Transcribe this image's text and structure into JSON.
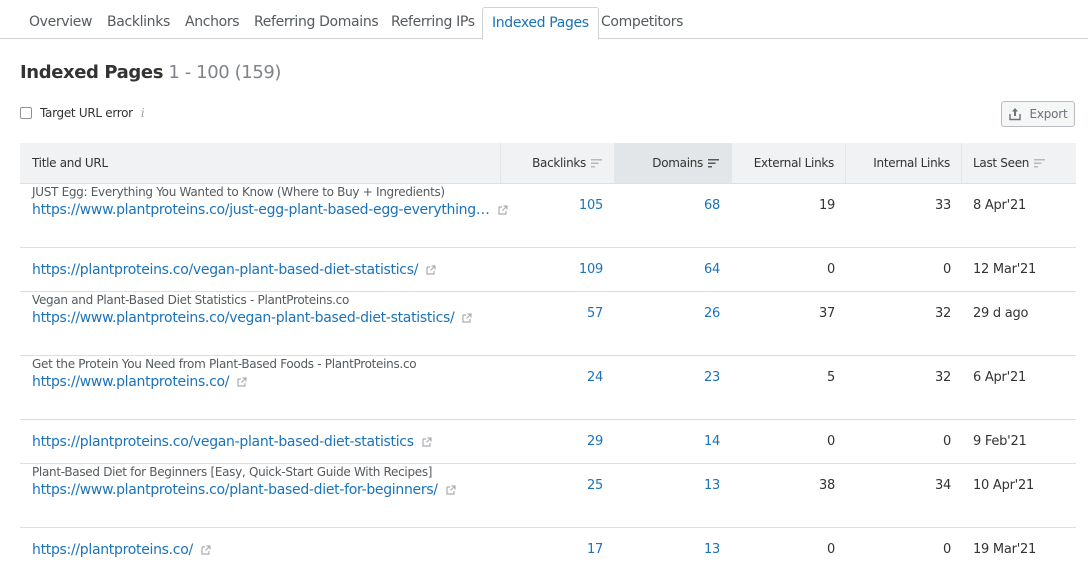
{
  "tabs": [
    {
      "label": "Overview",
      "active": false
    },
    {
      "label": "Backlinks",
      "active": false
    },
    {
      "label": "Anchors",
      "active": false
    },
    {
      "label": "Referring Domains",
      "active": false
    },
    {
      "label": "Referring IPs",
      "active": false
    },
    {
      "label": "Indexed Pages",
      "active": true
    },
    {
      "label": "Competitors",
      "active": false
    }
  ],
  "header": {
    "title": "Indexed Pages",
    "range": "1 - 100 (159)"
  },
  "filter": {
    "label": "Target URL error",
    "checked": false,
    "info_icon": "i"
  },
  "export": {
    "label": "Export",
    "icon": "upload-icon"
  },
  "table": {
    "columns": [
      {
        "label": "Title and URL",
        "sortable": false
      },
      {
        "label": "Backlinks",
        "sortable": true
      },
      {
        "label": "Domains",
        "sortable": true,
        "sorted": true
      },
      {
        "label": "External Links",
        "sortable": false
      },
      {
        "label": "Internal Links",
        "sortable": false
      },
      {
        "label": "Last Seen",
        "sortable": true
      }
    ],
    "rows": [
      {
        "title": "JUST Egg: Everything You Wanted to Know (Where to Buy + Ingredients)",
        "url": "https://www.plantproteins.co/just-egg-plant-based-egg-everything…",
        "backlinks": "105",
        "domains": "68",
        "external": "19",
        "internal": "33",
        "last_seen": "8 Apr'21"
      },
      {
        "title": "",
        "url": "https://plantproteins.co/vegan-plant-based-diet-statistics/",
        "backlinks": "109",
        "domains": "64",
        "external": "0",
        "internal": "0",
        "last_seen": "12 Mar'21"
      },
      {
        "title": "Vegan and Plant-Based Diet Statistics - PlantProteins.co",
        "url": "https://www.plantproteins.co/vegan-plant-based-diet-statistics/",
        "backlinks": "57",
        "domains": "26",
        "external": "37",
        "internal": "32",
        "last_seen": "29 d ago"
      },
      {
        "title": "Get the Protein You Need from Plant-Based Foods - PlantProteins.co",
        "url": "https://www.plantproteins.co/",
        "backlinks": "24",
        "domains": "23",
        "external": "5",
        "internal": "32",
        "last_seen": "6 Apr'21"
      },
      {
        "title": "",
        "url": "https://plantproteins.co/vegan-plant-based-diet-statistics",
        "backlinks": "29",
        "domains": "14",
        "external": "0",
        "internal": "0",
        "last_seen": "9 Feb'21"
      },
      {
        "title": "Plant-Based Diet for Beginners [Easy, Quick-Start Guide With Recipes]",
        "url": "https://www.plantproteins.co/plant-based-diet-for-beginners/",
        "backlinks": "25",
        "domains": "13",
        "external": "38",
        "internal": "34",
        "last_seen": "10 Apr'21"
      },
      {
        "title": "",
        "url": "https://plantproteins.co/",
        "backlinks": "17",
        "domains": "13",
        "external": "0",
        "internal": "0",
        "last_seen": "19 Mar'21"
      }
    ]
  },
  "colors": {
    "accent": "#1a73ba",
    "header_bg": "#f1f2f3",
    "sorted_header_bg": "#e3e6e8",
    "border": "#dde0e2"
  }
}
